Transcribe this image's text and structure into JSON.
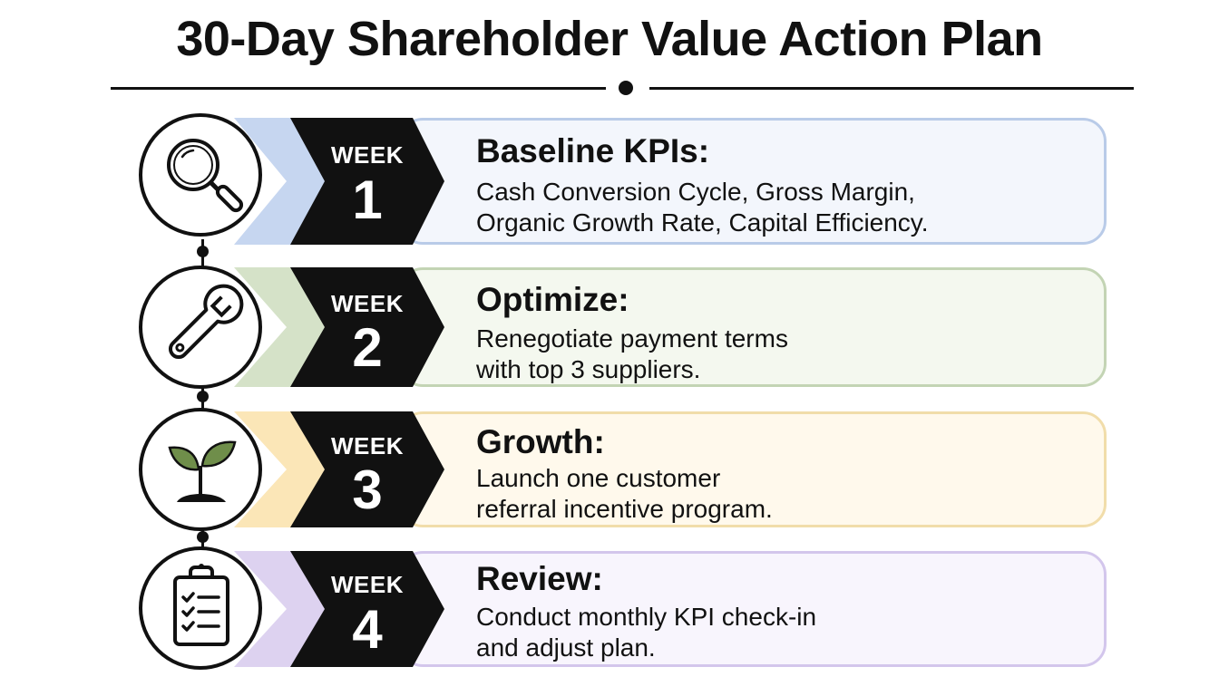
{
  "title": "30-Day Shareholder Value Action Plan",
  "colors": {
    "week1": {
      "card_bg": "#f3f6fc",
      "card_border": "#b9cbe8",
      "tab": "#c6d6f0"
    },
    "week2": {
      "card_bg": "#f4f8ef",
      "card_border": "#c3d4b4",
      "tab": "#d5e2c8"
    },
    "week3": {
      "card_bg": "#fff9ec",
      "card_border": "#f1ddaa",
      "tab": "#fbe6b7"
    },
    "week4": {
      "card_bg": "#f8f5fd",
      "card_border": "#d3c6ec",
      "tab": "#ddd2f0"
    },
    "arrow": "#111111",
    "sprout_leaf": "#6f8e4a"
  },
  "steps": [
    {
      "week_label": "WEEK",
      "week_number": "1",
      "icon": "magnifying-glass-icon",
      "heading": "Baseline KPIs:",
      "lines": [
        "Cash Conversion Cycle, Gross Margin,",
        "Organic Growth Rate, Capital Efficiency."
      ]
    },
    {
      "week_label": "WEEK",
      "week_number": "2",
      "icon": "wrench-icon",
      "heading": "Optimize:",
      "lines": [
        "Renegotiate payment terms",
        "with top 3 suppliers."
      ]
    },
    {
      "week_label": "WEEK",
      "week_number": "3",
      "icon": "sprout-icon",
      "heading": "Growth:",
      "lines": [
        "Launch one customer",
        "referral incentive program."
      ]
    },
    {
      "week_label": "WEEK",
      "week_number": "4",
      "icon": "checklist-clipboard-icon",
      "heading": "Review:",
      "lines": [
        "Conduct monthly KPI check-in",
        "and adjust plan."
      ]
    }
  ]
}
